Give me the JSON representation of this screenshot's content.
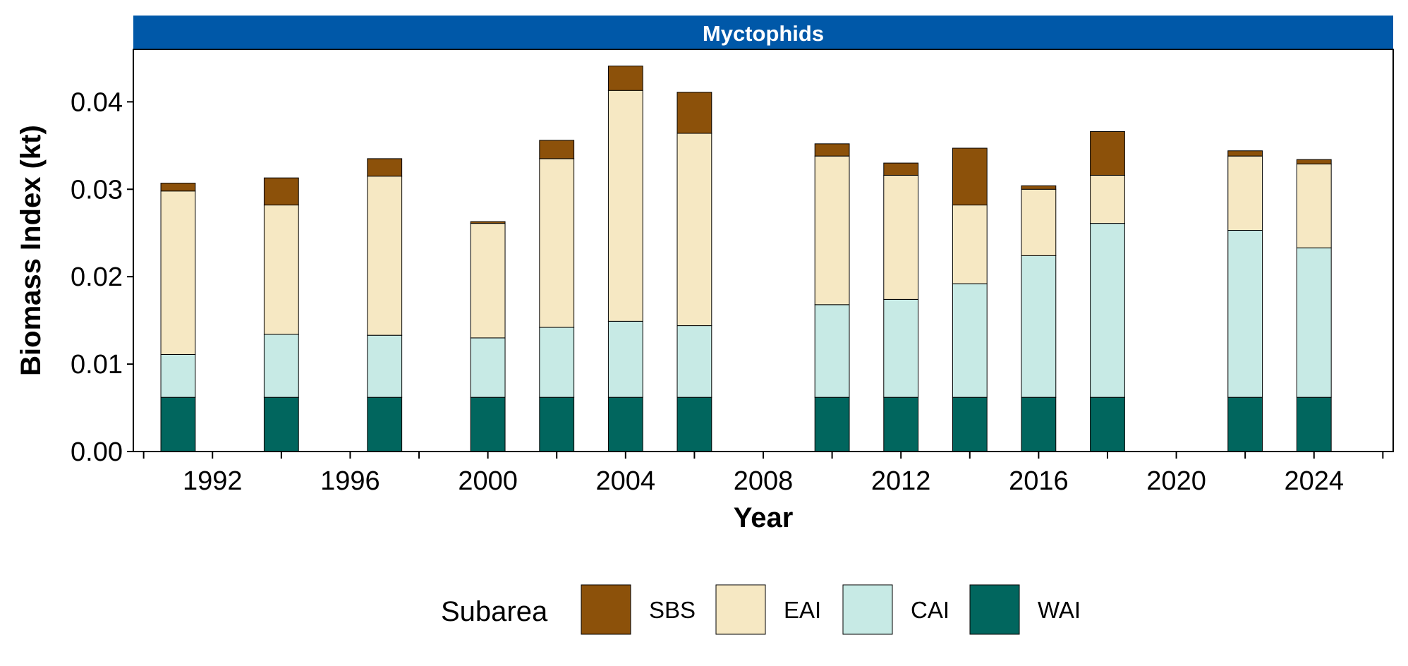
{
  "chart_data": {
    "type": "bar",
    "stacked": true,
    "panel_title": "Myctophids",
    "xlabel": "Year",
    "ylabel": "Biomass Index (kt)",
    "xlim": [
      1989.7,
      2026.3
    ],
    "ylim": [
      0,
      0.046
    ],
    "x_ticks": [
      1990,
      1992,
      1994,
      1996,
      1998,
      2000,
      2002,
      2004,
      2006,
      2008,
      2010,
      2012,
      2014,
      2016,
      2018,
      2020,
      2022,
      2024,
      2026
    ],
    "x_tick_labels": [
      {
        "value": 1992,
        "label": "1992"
      },
      {
        "value": 1996,
        "label": "1996"
      },
      {
        "value": 2000,
        "label": "2000"
      },
      {
        "value": 2004,
        "label": "2004"
      },
      {
        "value": 2008,
        "label": "2008"
      },
      {
        "value": 2012,
        "label": "2012"
      },
      {
        "value": 2016,
        "label": "2016"
      },
      {
        "value": 2020,
        "label": "2020"
      },
      {
        "value": 2024,
        "label": "2024"
      }
    ],
    "y_ticks": [
      {
        "value": 0,
        "label": "0.00"
      },
      {
        "value": 0.01,
        "label": "0.01"
      },
      {
        "value": 0.02,
        "label": "0.02"
      },
      {
        "value": 0.03,
        "label": "0.03"
      },
      {
        "value": 0.04,
        "label": "0.04"
      }
    ],
    "bar_width_years": 1.0,
    "x": [
      1991,
      1994,
      1997,
      2000,
      2002,
      2004,
      2006,
      2010,
      2012,
      2014,
      2016,
      2018,
      2022,
      2024
    ],
    "series": [
      {
        "name": "WAI",
        "color": "#01665E",
        "values": [
          0.0062,
          0.0062,
          0.0062,
          0.0062,
          0.0062,
          0.0062,
          0.0062,
          0.0062,
          0.0062,
          0.0062,
          0.0062,
          0.0062,
          0.0062,
          0.0062
        ]
      },
      {
        "name": "CAI",
        "color": "#C7EAE5",
        "values": [
          0.0049,
          0.0072,
          0.0071,
          0.0068,
          0.008,
          0.0087,
          0.0082,
          0.0106,
          0.0112,
          0.013,
          0.0162,
          0.0199,
          0.0191,
          0.0171
        ]
      },
      {
        "name": "EAI",
        "color": "#F6E8C3",
        "values": [
          0.0187,
          0.0148,
          0.0182,
          0.0131,
          0.0193,
          0.0264,
          0.022,
          0.017,
          0.0142,
          0.009,
          0.0076,
          0.0055,
          0.0085,
          0.0096
        ]
      },
      {
        "name": "SBS",
        "color": "#8C510A",
        "values": [
          0.0009,
          0.0031,
          0.002,
          0.0002,
          0.0021,
          0.0028,
          0.0047,
          0.0014,
          0.0014,
          0.0065,
          0.0004,
          0.005,
          0.0006,
          0.0005
        ]
      }
    ],
    "legend": {
      "title": "Subarea",
      "position": "bottom",
      "items": [
        {
          "name": "SBS",
          "color": "#8C510A"
        },
        {
          "name": "EAI",
          "color": "#F6E8C3"
        },
        {
          "name": "CAI",
          "color": "#C7EAE5"
        },
        {
          "name": "WAI",
          "color": "#01665E"
        }
      ]
    },
    "grid": false,
    "colors": {
      "strip": "#0058A8",
      "outline": "#000000"
    }
  }
}
